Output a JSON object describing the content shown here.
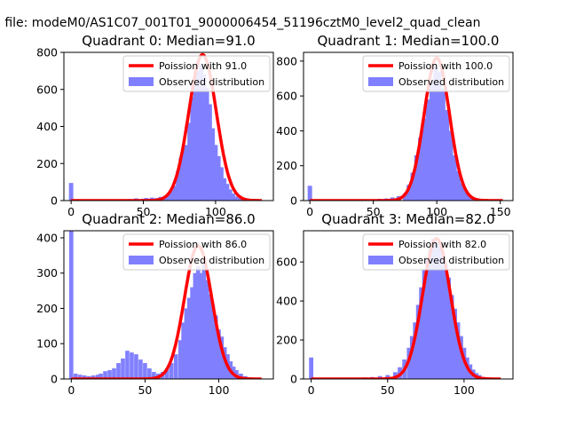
{
  "figure_title": "n file: modeM0/AS1C07_001T01_9000006454_51196cztM0_level2_quad_clean",
  "colors": {
    "poisson": "#ff0000",
    "observed": "#8080ff"
  },
  "chart_data": [
    {
      "type": "bar",
      "title": "Quadrant 0: Median=91.0",
      "xlim": [
        -5,
        140
      ],
      "ylim": [
        0,
        800
      ],
      "xticks": [
        0,
        50,
        100
      ],
      "yticks": [
        0,
        200,
        400,
        600,
        800
      ],
      "legend_position": "upper-right",
      "legend": [
        "Poission with 91.0",
        "Observed distribution"
      ],
      "median": 91.0,
      "observed": {
        "bin_width": 3,
        "bins": [
          [
            0,
            95
          ],
          [
            40,
            8
          ],
          [
            42,
            5
          ],
          [
            45,
            12
          ],
          [
            48,
            6
          ],
          [
            50,
            10
          ],
          [
            52,
            14
          ],
          [
            54,
            10
          ],
          [
            56,
            16
          ],
          [
            58,
            12
          ],
          [
            60,
            14
          ],
          [
            62,
            20
          ],
          [
            64,
            18
          ],
          [
            66,
            24
          ],
          [
            68,
            38
          ],
          [
            70,
            55
          ],
          [
            72,
            80
          ],
          [
            74,
            160
          ],
          [
            76,
            230
          ],
          [
            78,
            280
          ],
          [
            80,
            300
          ],
          [
            82,
            420
          ],
          [
            84,
            560
          ],
          [
            86,
            650
          ],
          [
            88,
            700
          ],
          [
            90,
            740
          ],
          [
            92,
            680
          ],
          [
            94,
            610
          ],
          [
            96,
            520
          ],
          [
            98,
            390
          ],
          [
            100,
            300
          ],
          [
            102,
            240
          ],
          [
            104,
            180
          ],
          [
            106,
            120
          ],
          [
            108,
            90
          ],
          [
            110,
            60
          ],
          [
            112,
            38
          ],
          [
            114,
            22
          ],
          [
            116,
            14
          ],
          [
            118,
            8
          ],
          [
            120,
            5
          ]
        ]
      },
      "poisson_peak": 788
    },
    {
      "type": "bar",
      "title": "Quadrant 1: Median=100.0",
      "xlim": [
        -5,
        160
      ],
      "ylim": [
        0,
        850
      ],
      "xticks": [
        0,
        50,
        100,
        150
      ],
      "yticks": [
        0,
        200,
        400,
        600,
        800
      ],
      "legend_position": "upper-right",
      "legend": [
        "Poission with 100.0",
        "Observed distribution"
      ],
      "median": 100.0,
      "observed": {
        "bin_width": 3.5,
        "bins": [
          [
            0,
            85
          ],
          [
            45,
            8
          ],
          [
            50,
            5
          ],
          [
            55,
            10
          ],
          [
            60,
            12
          ],
          [
            65,
            18
          ],
          [
            70,
            25
          ],
          [
            75,
            40
          ],
          [
            78,
            90
          ],
          [
            81,
            160
          ],
          [
            84,
            260
          ],
          [
            87,
            360
          ],
          [
            90,
            470
          ],
          [
            93,
            580
          ],
          [
            96,
            680
          ],
          [
            99,
            770
          ],
          [
            102,
            740
          ],
          [
            105,
            640
          ],
          [
            108,
            520
          ],
          [
            111,
            400
          ],
          [
            114,
            260
          ],
          [
            117,
            170
          ],
          [
            120,
            100
          ],
          [
            123,
            55
          ],
          [
            126,
            30
          ],
          [
            129,
            18
          ],
          [
            135,
            10
          ],
          [
            140,
            5
          ]
        ]
      },
      "poisson_peak": 818
    },
    {
      "type": "bar",
      "title": "Quadrant 2: Median=86.0",
      "xlim": [
        -5,
        137
      ],
      "ylim": [
        0,
        420
      ],
      "xticks": [
        0,
        50,
        100
      ],
      "yticks": [
        0,
        100,
        200,
        300,
        400
      ],
      "legend_position": "upper-right",
      "legend": [
        "Poission with 86.0",
        "Observed distribution"
      ],
      "median": 86.0,
      "observed": {
        "bin_width": 2.8,
        "bins": [
          [
            0,
            430
          ],
          [
            3,
            15
          ],
          [
            6,
            12
          ],
          [
            9,
            10
          ],
          [
            12,
            8
          ],
          [
            15,
            10
          ],
          [
            18,
            12
          ],
          [
            20,
            15
          ],
          [
            23,
            22
          ],
          [
            26,
            25
          ],
          [
            29,
            30
          ],
          [
            32,
            45
          ],
          [
            35,
            58
          ],
          [
            38,
            80
          ],
          [
            41,
            75
          ],
          [
            44,
            70
          ],
          [
            47,
            55
          ],
          [
            50,
            45
          ],
          [
            53,
            30
          ],
          [
            56,
            20
          ],
          [
            59,
            15
          ],
          [
            62,
            20
          ],
          [
            65,
            30
          ],
          [
            68,
            45
          ],
          [
            71,
            70
          ],
          [
            74,
            110
          ],
          [
            76,
            160
          ],
          [
            78,
            200
          ],
          [
            80,
            230
          ],
          [
            82,
            260
          ],
          [
            84,
            300
          ],
          [
            86,
            320
          ],
          [
            88,
            300
          ],
          [
            90,
            340
          ],
          [
            92,
            280
          ],
          [
            94,
            240
          ],
          [
            96,
            210
          ],
          [
            98,
            180
          ],
          [
            100,
            140
          ],
          [
            102,
            120
          ],
          [
            104,
            90
          ],
          [
            106,
            70
          ],
          [
            108,
            50
          ],
          [
            110,
            35
          ],
          [
            112,
            25
          ],
          [
            115,
            15
          ],
          [
            118,
            8
          ]
        ]
      },
      "poisson_peak": 378
    },
    {
      "type": "bar",
      "title": "Quadrant 3: Median=82.0",
      "xlim": [
        -5,
        132
      ],
      "ylim": [
        0,
        760
      ],
      "xticks": [
        0,
        50,
        100
      ],
      "yticks": [
        0,
        200,
        400,
        600
      ],
      "legend_position": "upper-right",
      "legend": [
        "Poission with 82.0",
        "Observed distribution"
      ],
      "median": 82.0,
      "observed": {
        "bin_width": 2.8,
        "bins": [
          [
            0,
            110
          ],
          [
            35,
            8
          ],
          [
            40,
            10
          ],
          [
            45,
            15
          ],
          [
            50,
            20
          ],
          [
            55,
            35
          ],
          [
            58,
            60
          ],
          [
            61,
            100
          ],
          [
            64,
            160
          ],
          [
            66,
            220
          ],
          [
            68,
            290
          ],
          [
            70,
            380
          ],
          [
            72,
            470
          ],
          [
            74,
            560
          ],
          [
            76,
            620
          ],
          [
            78,
            680
          ],
          [
            80,
            720
          ],
          [
            82,
            700
          ],
          [
            84,
            680
          ],
          [
            86,
            630
          ],
          [
            88,
            590
          ],
          [
            90,
            520
          ],
          [
            92,
            430
          ],
          [
            94,
            360
          ],
          [
            96,
            290
          ],
          [
            98,
            220
          ],
          [
            100,
            160
          ],
          [
            102,
            110
          ],
          [
            104,
            75
          ],
          [
            106,
            48
          ],
          [
            108,
            30
          ],
          [
            110,
            20
          ],
          [
            113,
            10
          ],
          [
            116,
            5
          ]
        ]
      },
      "poisson_peak": 720
    }
  ]
}
